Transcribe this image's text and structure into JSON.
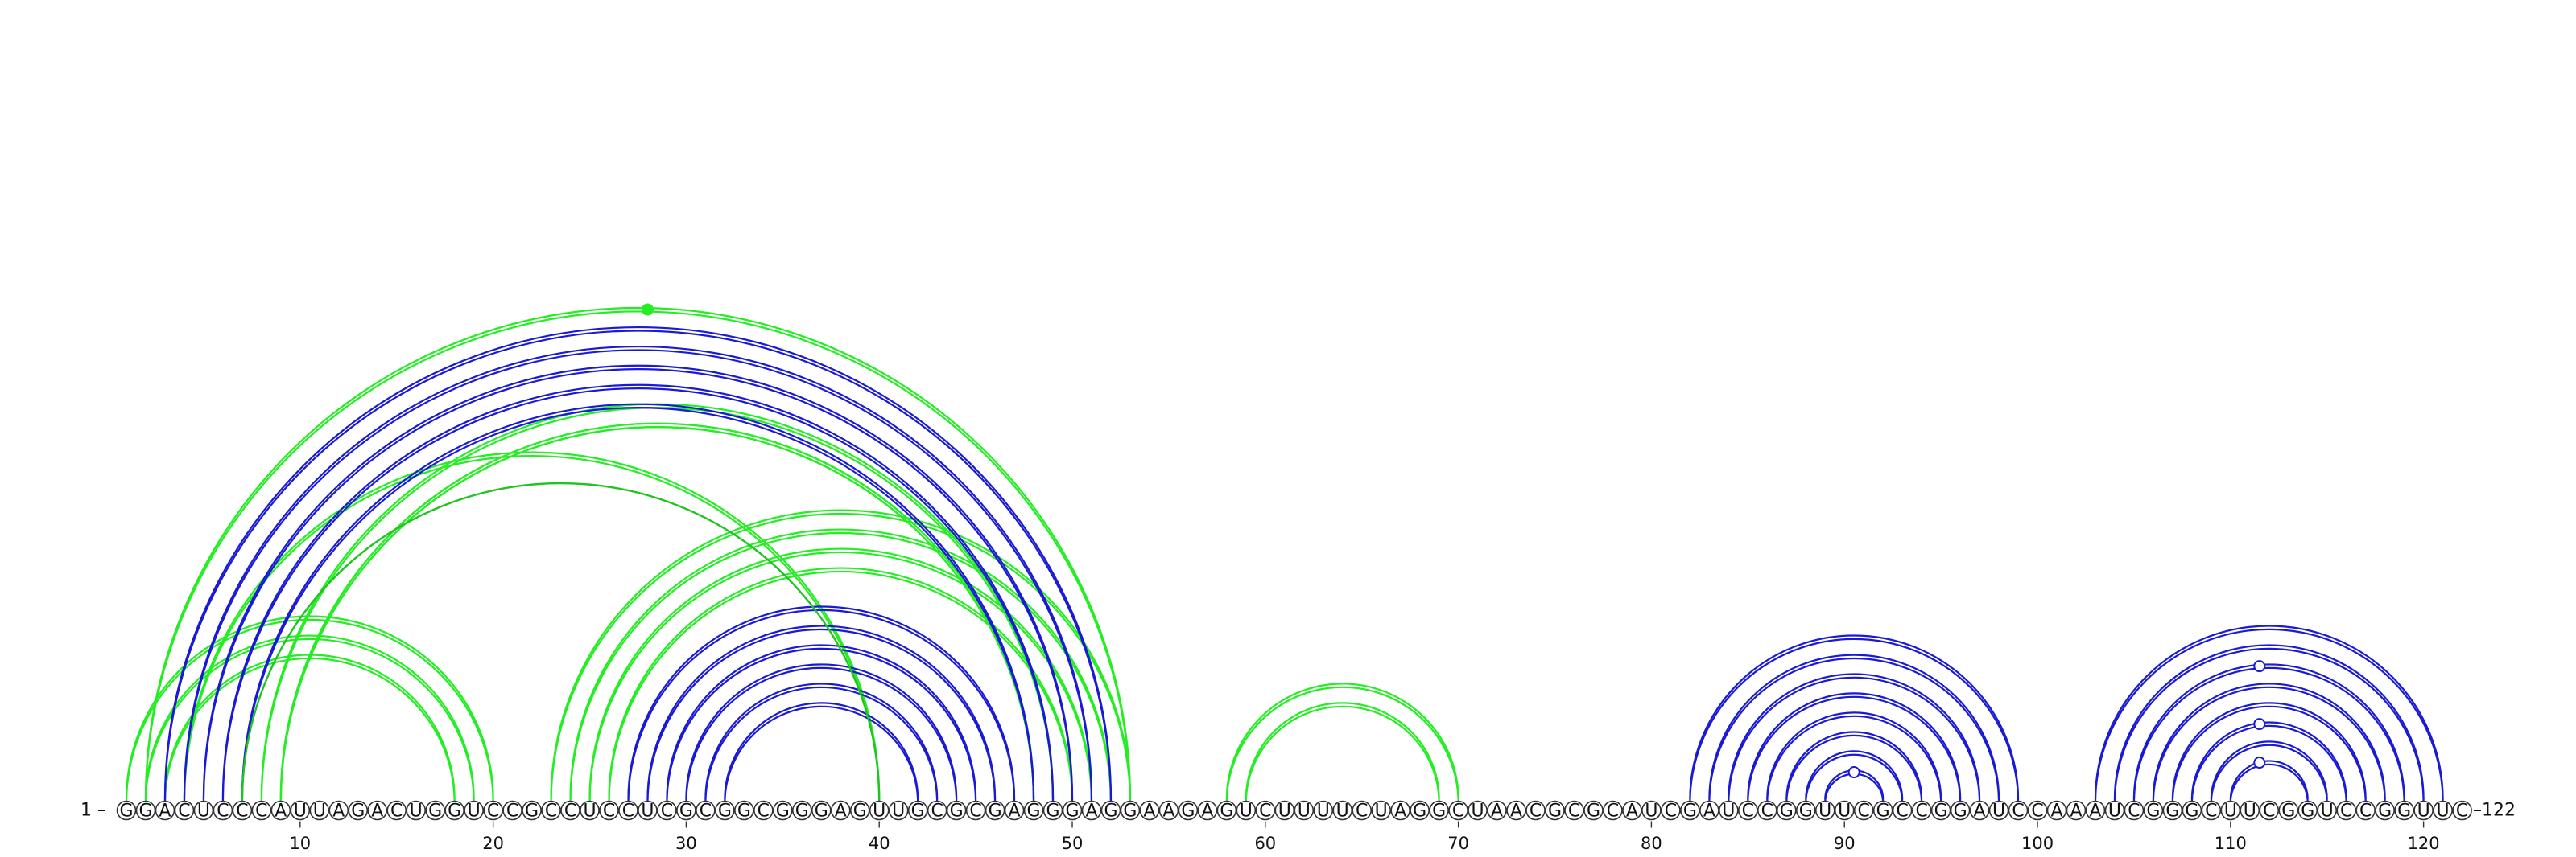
{
  "sequence": "GGACUCCCAUUAGACUGGUCCGCCUCCUCGCGGCGGGAGUUGCGCGAGGGAGGAAGAGUCUUUUCUAGGCUAACGCGCAUCGAUCCGGUUCGCCGGAUCCAAAUCGGGCUUCGGUCCGGUUC",
  "start_label": "1 –",
  "end_label": "–122",
  "ticks": [
    "10",
    "20",
    "30",
    "40",
    "50",
    "60",
    "70",
    "80",
    "90",
    "100",
    "110",
    "120"
  ],
  "colors": {
    "paired_arc": "#1a1ad6",
    "alt_arc": "#22ee22",
    "alt_arc_dark": "#1fc41f"
  },
  "chart_data": {
    "type": "arc-diagram",
    "length": 122,
    "tick_positions": [
      10,
      20,
      30,
      40,
      50,
      60,
      70,
      80,
      90,
      100,
      110,
      120
    ],
    "blue_pairs": [
      [
        3,
        52
      ],
      [
        4,
        51
      ],
      [
        5,
        50
      ],
      [
        6,
        49
      ],
      [
        7,
        48
      ],
      [
        27,
        47
      ],
      [
        28,
        46
      ],
      [
        29,
        45
      ],
      [
        30,
        44
      ],
      [
        31,
        43
      ],
      [
        32,
        42
      ],
      [
        82,
        99
      ],
      [
        83,
        98
      ],
      [
        84,
        97
      ],
      [
        85,
        96
      ],
      [
        86,
        95
      ],
      [
        87,
        94
      ],
      [
        88,
        93
      ],
      [
        89,
        92
      ],
      [
        103,
        121
      ],
      [
        104,
        120
      ],
      [
        105,
        119
      ],
      [
        106,
        118
      ],
      [
        107,
        117
      ],
      [
        108,
        116
      ],
      [
        109,
        115
      ],
      [
        110,
        114
      ]
    ],
    "green_pairs": [
      [
        1,
        20
      ],
      [
        2,
        19
      ],
      [
        3,
        18
      ],
      [
        8,
        49
      ],
      [
        9,
        48
      ],
      [
        23,
        53
      ],
      [
        24,
        52
      ],
      [
        25,
        51
      ],
      [
        26,
        50
      ],
      [
        4,
        40
      ],
      [
        2,
        53
      ],
      [
        58,
        70
      ],
      [
        59,
        69
      ],
      [
        9,
        48
      ]
    ],
    "green_thin_pairs": [
      [
        7,
        40
      ]
    ],
    "markers": [
      {
        "position": 28,
        "over": [
          2,
          53
        ],
        "style": "filled-green"
      },
      {
        "position": 90.5,
        "over": [
          89,
          92
        ],
        "style": "open-blue"
      },
      {
        "position": 111.5,
        "over": [
          110,
          114
        ],
        "style": "open-blue"
      },
      {
        "position": 111.5,
        "over": [
          108,
          116
        ],
        "style": "open-blue"
      },
      {
        "position": 111.5,
        "over": [
          105,
          119
        ],
        "style": "open-blue"
      }
    ]
  }
}
